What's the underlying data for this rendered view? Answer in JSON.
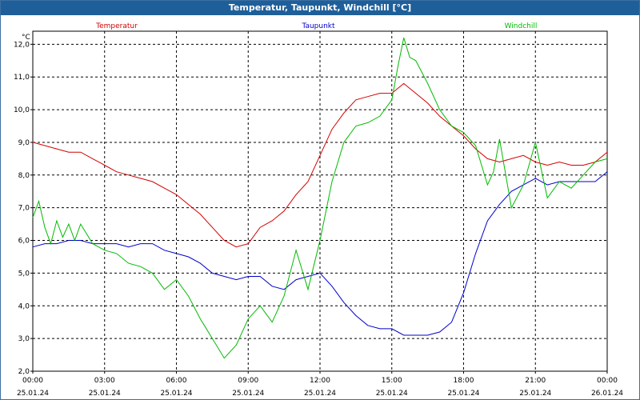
{
  "window": {
    "title": "Temperatur, Taupunkt, Windchill [°C]"
  },
  "colors": {
    "titlebar": "#1f5f99",
    "temperatur": "#d40000",
    "taupunkt": "#0000cc",
    "windchill": "#00bb00",
    "grid": "#000000"
  },
  "chart_data": {
    "type": "line",
    "title": "Temperatur, Taupunkt, Windchill [°C]",
    "ylabel": "°C",
    "xlabel": "",
    "ylim": [
      2.0,
      12.4
    ],
    "xlim": [
      0,
      24
    ],
    "yticks": [
      "2,0",
      "3,0",
      "4,0",
      "5,0",
      "6,0",
      "7,0",
      "8,0",
      "9,0",
      "10,0",
      "11,0",
      "12,0"
    ],
    "xticks": [
      {
        "time": "00:00",
        "date": "25.01.24"
      },
      {
        "time": "03:00",
        "date": "25.01.24"
      },
      {
        "time": "06:00",
        "date": "25.01.24"
      },
      {
        "time": "09:00",
        "date": "25.01.24"
      },
      {
        "time": "12:00",
        "date": "25.01.24"
      },
      {
        "time": "15:00",
        "date": "25.01.24"
      },
      {
        "time": "18:00",
        "date": "25.01.24"
      },
      {
        "time": "21:00",
        "date": "25.01.24"
      },
      {
        "time": "00:00",
        "date": "26.01.24"
      }
    ],
    "grid": true,
    "legend": "top",
    "series": [
      {
        "name": "Temperatur",
        "color": "#d40000",
        "x": [
          0,
          0.5,
          1,
          1.5,
          2,
          2.5,
          3,
          3.5,
          4,
          4.5,
          5,
          5.5,
          6,
          6.5,
          7,
          7.5,
          8,
          8.5,
          9,
          9.5,
          10,
          10.5,
          11,
          11.5,
          12,
          12.5,
          13,
          13.5,
          14,
          14.5,
          15,
          15.5,
          16,
          16.5,
          17,
          17.5,
          18,
          18.5,
          19,
          19.5,
          20,
          20.5,
          21,
          21.5,
          22,
          22.5,
          23,
          23.5,
          24
        ],
        "values": [
          9.0,
          8.9,
          8.8,
          8.7,
          8.7,
          8.5,
          8.3,
          8.1,
          8.0,
          7.9,
          7.8,
          7.6,
          7.4,
          7.1,
          6.8,
          6.4,
          6.0,
          5.8,
          5.9,
          6.4,
          6.6,
          6.9,
          7.4,
          7.8,
          8.6,
          9.4,
          9.9,
          10.3,
          10.4,
          10.5,
          10.5,
          10.8,
          10.5,
          10.2,
          9.8,
          9.5,
          9.2,
          8.8,
          8.5,
          8.4,
          8.5,
          8.6,
          8.4,
          8.3,
          8.4,
          8.3,
          8.3,
          8.4,
          8.7
        ]
      },
      {
        "name": "Taupunkt",
        "color": "#0000cc",
        "x": [
          0,
          0.5,
          1,
          1.5,
          2,
          2.5,
          3,
          3.5,
          4,
          4.5,
          5,
          5.5,
          6,
          6.5,
          7,
          7.5,
          8,
          8.5,
          9,
          9.5,
          10,
          10.5,
          11,
          11.5,
          12,
          12.5,
          13,
          13.5,
          14,
          14.5,
          15,
          15.5,
          16,
          16.5,
          17,
          17.5,
          18,
          18.5,
          19,
          19.5,
          20,
          20.5,
          21,
          21.5,
          22,
          22.5,
          23,
          23.5,
          24
        ],
        "values": [
          5.8,
          5.9,
          5.9,
          6.0,
          6.0,
          5.9,
          5.9,
          5.9,
          5.8,
          5.9,
          5.9,
          5.7,
          5.6,
          5.5,
          5.3,
          5.0,
          4.9,
          4.8,
          4.9,
          4.9,
          4.6,
          4.5,
          4.8,
          4.9,
          5.0,
          4.6,
          4.1,
          3.7,
          3.4,
          3.3,
          3.3,
          3.1,
          3.1,
          3.1,
          3.2,
          3.5,
          4.4,
          5.6,
          6.6,
          7.1,
          7.5,
          7.7,
          7.9,
          7.7,
          7.8,
          7.8,
          7.8,
          7.8,
          8.1
        ]
      },
      {
        "name": "Windchill",
        "color": "#00bb00",
        "x": [
          0,
          0.25,
          0.5,
          0.75,
          1,
          1.25,
          1.5,
          1.75,
          2,
          2.5,
          3,
          3.5,
          4,
          4.5,
          5,
          5.5,
          6,
          6.5,
          7,
          7.5,
          8,
          8.5,
          9,
          9.5,
          10,
          10.5,
          11,
          11.5,
          12,
          12.5,
          13,
          13.5,
          14,
          14.5,
          15,
          15.25,
          15.5,
          15.75,
          16,
          16.5,
          17,
          17.5,
          18,
          18.5,
          19,
          19.25,
          19.5,
          20,
          20.5,
          21,
          21.5,
          22,
          22.5,
          23,
          23.5,
          24
        ],
        "values": [
          6.7,
          7.2,
          6.4,
          5.9,
          6.6,
          6.1,
          6.5,
          6.0,
          6.5,
          5.9,
          5.7,
          5.6,
          5.3,
          5.2,
          5.0,
          4.5,
          4.8,
          4.3,
          3.6,
          3.0,
          2.4,
          2.8,
          3.6,
          4.0,
          3.5,
          4.3,
          5.7,
          4.5,
          6.0,
          7.8,
          9.0,
          9.5,
          9.6,
          9.8,
          10.3,
          11.3,
          12.2,
          11.6,
          11.5,
          10.8,
          10.0,
          9.5,
          9.3,
          8.9,
          7.7,
          8.1,
          9.1,
          7.0,
          7.7,
          9.0,
          7.3,
          7.8,
          7.6,
          8.0,
          8.4,
          8.5
        ]
      }
    ]
  }
}
